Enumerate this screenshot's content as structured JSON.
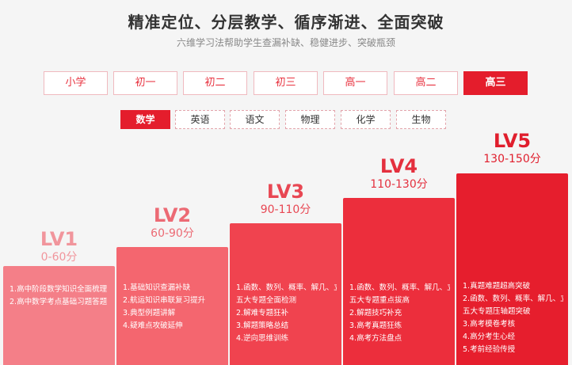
{
  "header": {
    "title": "精准定位、分层教学、循序渐进、全面突破",
    "subtitle": "六维学习法帮助学生查漏补缺、稳健进步、突破瓶颈"
  },
  "grades": [
    {
      "label": "小学",
      "active": false
    },
    {
      "label": "初一",
      "active": false
    },
    {
      "label": "初二",
      "active": false
    },
    {
      "label": "初三",
      "active": false
    },
    {
      "label": "高一",
      "active": false
    },
    {
      "label": "高二",
      "active": false
    },
    {
      "label": "高三",
      "active": true
    }
  ],
  "subjects": [
    {
      "label": "数学",
      "active": true
    },
    {
      "label": "英语",
      "active": false
    },
    {
      "label": "语文",
      "active": false
    },
    {
      "label": "物理",
      "active": false
    },
    {
      "label": "化学",
      "active": false
    },
    {
      "label": "生物",
      "active": false
    }
  ],
  "levels": [
    {
      "name": "LV1",
      "range": "0-60分",
      "name_color": "#f1959c",
      "bar_color": "#f47f88",
      "items": [
        "1.高中阶段数学知识全面梳理",
        "2.高中数学考点基础习题答题"
      ]
    },
    {
      "name": "LV2",
      "range": "60-90分",
      "name_color": "#ec6a74",
      "bar_color": "#f4666f",
      "items": [
        "1.基础知识查漏补缺",
        "2.航运知识串联复习提升",
        "3.典型例题讲解",
        "4.疑难点攻破延伸"
      ]
    },
    {
      "name": "LV3",
      "range": "90-110分",
      "name_color": "#e84753",
      "bar_color": "#f0434f",
      "items": [
        "1.函数、数列、概率、解几、立几",
        "五大专题全面检测",
        "2.解难专题狂补",
        "3.解题策略总结",
        "4.逆向思维训练"
      ]
    },
    {
      "name": "LV4",
      "range": "110-130分",
      "name_color": "#e4303e",
      "bar_color": "#ec2e3c",
      "items": [
        "1.函数、数列、概率、解几、立几",
        "五大专题重点拔高",
        "2.解题技巧补充",
        "3.高考真题狂练",
        "4.高考方法盘点"
      ]
    },
    {
      "name": "LV5",
      "range": "130-150分",
      "name_color": "#e01e2d",
      "bar_color": "#e61e2d",
      "items": [
        "1.真题难题超高突破",
        "2.函数、数列、概率、解几、立几",
        "五大专题压轴题突破",
        "3.高考模卷考核",
        "4.高分考生心经",
        "5.考前经验传授"
      ]
    }
  ]
}
